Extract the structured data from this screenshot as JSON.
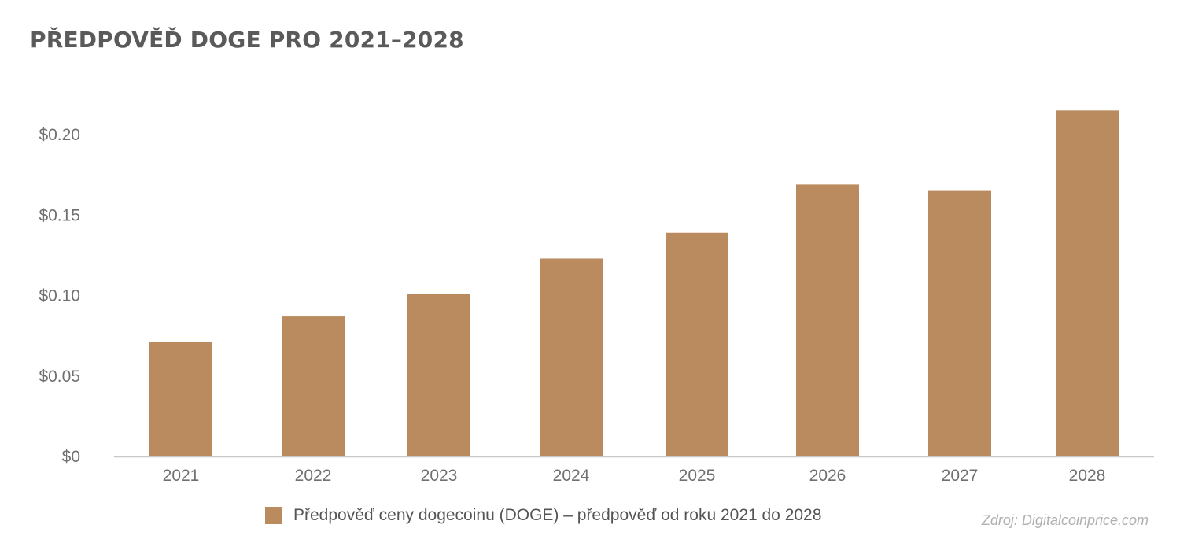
{
  "chart_data": {
    "type": "bar",
    "title": "PŘEDPOVĚĎ DOGE PRO 2021–2028",
    "categories": [
      "2021",
      "2022",
      "2023",
      "2024",
      "2025",
      "2026",
      "2027",
      "2028"
    ],
    "series": [
      {
        "name": "Předpověď ceny dogecoinu (DOGE) – předpověď od roku 2021 do 2028",
        "color": "#bb8b60",
        "values": [
          0.071,
          0.087,
          0.101,
          0.123,
          0.139,
          0.169,
          0.165,
          0.215
        ]
      }
    ],
    "y_ticks": [
      "$0",
      "$0.05",
      "$0.10",
      "$0.15",
      "$0.20"
    ],
    "y_tick_values": [
      0,
      0.05,
      0.1,
      0.15,
      0.2
    ],
    "ylim": [
      0,
      0.22
    ],
    "xlabel": "",
    "ylabel": "",
    "grid": false,
    "legend_position": "bottom"
  },
  "source": "Zdroj: Digitalcoinprice.com"
}
